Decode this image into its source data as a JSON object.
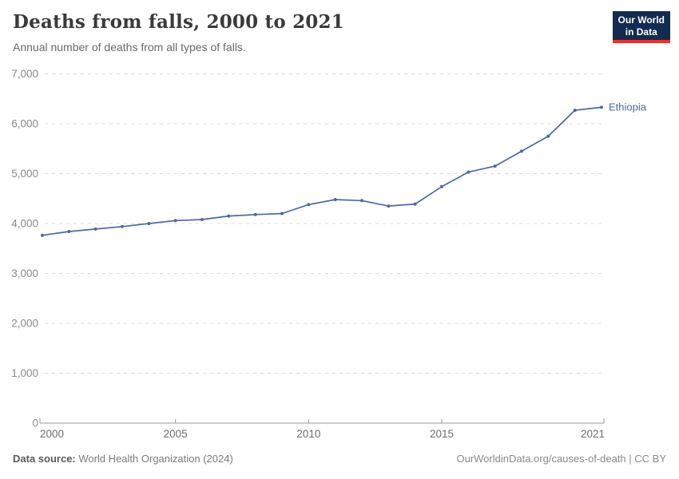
{
  "header": {
    "title": "Deaths from falls, 2000 to 2021",
    "subtitle": "Annual number of deaths from all types of falls."
  },
  "logo": {
    "line1": "Our World",
    "line2": "in Data",
    "bg_color": "#122b4e",
    "accent_color": "#e0362c"
  },
  "footer": {
    "source_label": "Data source:",
    "source_text": " World Health Organization (2024)",
    "credit_text": "OurWorldinData.org/causes-of-death | CC BY"
  },
  "chart_data": {
    "type": "line",
    "title": "Deaths from falls, 2000 to 2021",
    "subtitle": "Annual number of deaths from all types of falls.",
    "xlabel": "",
    "ylabel": "",
    "xlim": [
      2000,
      2021
    ],
    "ylim": [
      0,
      7000
    ],
    "x_ticks": [
      2000,
      2005,
      2010,
      2015,
      2021
    ],
    "y_ticks": [
      0,
      1000,
      2000,
      3000,
      4000,
      5000,
      6000,
      7000
    ],
    "grid": "horizontal-dashed",
    "legend_position": "end-of-line",
    "series": [
      {
        "name": "Ethiopia",
        "color": "#4c6a9c",
        "x": [
          2000,
          2001,
          2002,
          2003,
          2004,
          2005,
          2006,
          2007,
          2008,
          2009,
          2010,
          2011,
          2012,
          2013,
          2014,
          2015,
          2016,
          2017,
          2018,
          2019,
          2020,
          2021
        ],
        "values": [
          3765,
          3840,
          3890,
          3940,
          4000,
          4060,
          4080,
          4150,
          4180,
          4200,
          4380,
          4480,
          4460,
          4350,
          4390,
          4740,
          5030,
          5150,
          5450,
          5750,
          6270,
          6330
        ]
      }
    ]
  }
}
